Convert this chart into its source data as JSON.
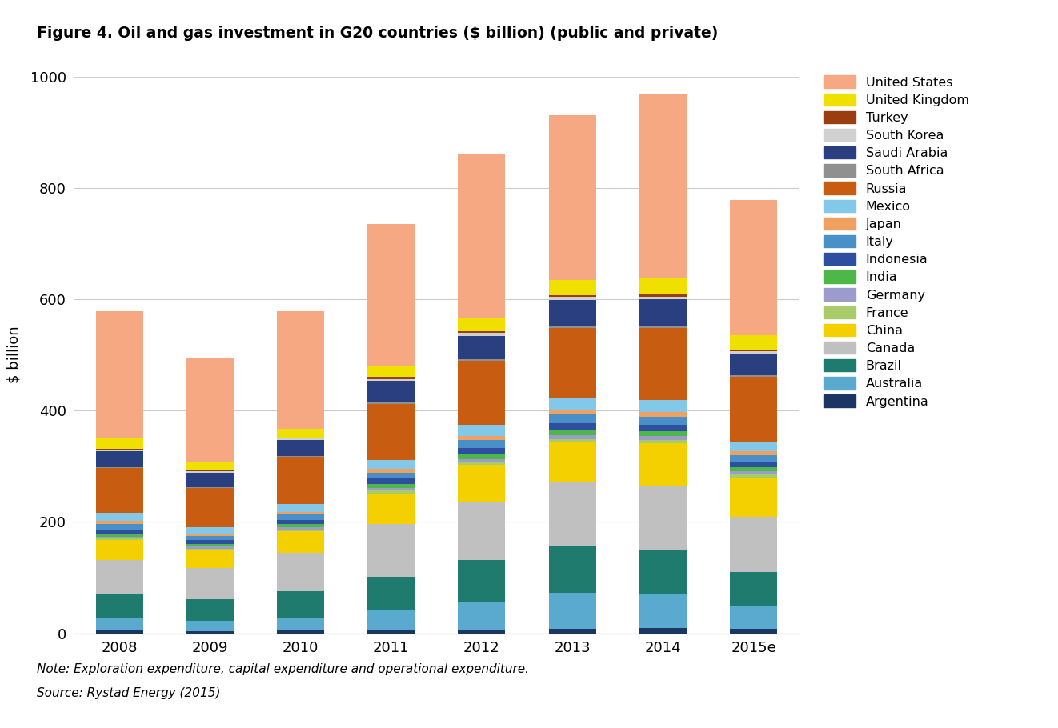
{
  "title": "Figure 4. Oil and gas investment in G20 countries ($ billion) (public and private)",
  "ylabel": "$ billion",
  "note": "Note: Exploration expenditure, capital expenditure and operational expenditure.",
  "source": "Source: Rystad Energy (2015)",
  "years": [
    "2008",
    "2009",
    "2010",
    "2011",
    "2012",
    "2013",
    "2014",
    "2015e"
  ],
  "countries": [
    "Argentina",
    "Australia",
    "Brazil",
    "Canada",
    "China",
    "France",
    "Germany",
    "India",
    "Indonesia",
    "Italy",
    "Japan",
    "Mexico",
    "Russia",
    "South Africa",
    "Saudi Arabia",
    "South Korea",
    "Turkey",
    "United Kingdom",
    "United States"
  ],
  "colors": {
    "Argentina": "#1c3562",
    "Australia": "#5aaad0",
    "Brazil": "#1e7b6e",
    "Canada": "#c0c0c0",
    "China": "#f5d000",
    "France": "#a8cc6a",
    "Germany": "#9b9bcc",
    "India": "#4db848",
    "Indonesia": "#2e4fa0",
    "Italy": "#4a90c8",
    "Japan": "#f0a060",
    "Mexico": "#82c8e8",
    "Russia": "#c85c10",
    "South Africa": "#909090",
    "Saudi Arabia": "#2a3f80",
    "South Korea": "#d0d0d0",
    "Turkey": "#9a3e10",
    "United Kingdom": "#f0e000",
    "United States": "#f5a882"
  },
  "data": {
    "Argentina": [
      5,
      4,
      5,
      6,
      7,
      8,
      9,
      8
    ],
    "Australia": [
      22,
      18,
      22,
      35,
      50,
      65,
      62,
      42
    ],
    "Brazil": [
      45,
      40,
      48,
      60,
      75,
      85,
      80,
      60
    ],
    "Canada": [
      60,
      55,
      70,
      95,
      105,
      115,
      115,
      100
    ],
    "China": [
      35,
      32,
      38,
      55,
      65,
      70,
      75,
      70
    ],
    "France": [
      3,
      3,
      4,
      5,
      5,
      6,
      6,
      5
    ],
    "Germany": [
      4,
      4,
      4,
      5,
      6,
      7,
      7,
      6
    ],
    "India": [
      5,
      4,
      5,
      7,
      8,
      9,
      9,
      8
    ],
    "Indonesia": [
      8,
      7,
      8,
      10,
      12,
      13,
      12,
      10
    ],
    "Italy": [
      10,
      8,
      9,
      11,
      14,
      15,
      14,
      11
    ],
    "Japan": [
      5,
      4,
      5,
      6,
      7,
      8,
      8,
      7
    ],
    "Mexico": [
      15,
      12,
      14,
      17,
      20,
      22,
      22,
      18
    ],
    "Russia": [
      80,
      70,
      85,
      100,
      115,
      125,
      130,
      115
    ],
    "South Africa": [
      2,
      2,
      2,
      3,
      3,
      3,
      3,
      3
    ],
    "Saudi Arabia": [
      28,
      25,
      28,
      38,
      42,
      48,
      48,
      40
    ],
    "South Korea": [
      3,
      3,
      3,
      4,
      5,
      5,
      5,
      4
    ],
    "Turkey": [
      2,
      2,
      2,
      3,
      3,
      3,
      4,
      3
    ],
    "United Kingdom": [
      18,
      14,
      16,
      20,
      25,
      28,
      30,
      26
    ],
    "United States": [
      228,
      188,
      210,
      255,
      295,
      295,
      330,
      242
    ]
  },
  "ylim": [
    0,
    1000
  ],
  "yticks": [
    0,
    200,
    400,
    600,
    800,
    1000
  ],
  "figsize": [
    13.22,
    9.1
  ],
  "dpi": 100
}
